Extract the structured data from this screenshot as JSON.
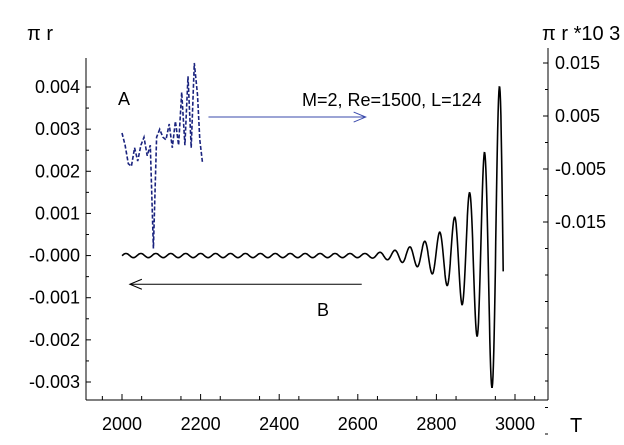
{
  "chart_data": {
    "type": "line",
    "left_axis": {
      "label": "π r",
      "ylim": [
        -0.0033,
        0.0043
      ],
      "ticks": [
        0.004,
        0.003,
        0.002,
        0.001,
        0.0,
        -0.001,
        -0.002,
        -0.003
      ],
      "tick_labels": [
        "0.004",
        "0.003",
        "0.002",
        "0.001",
        "-0.000",
        "-0.001",
        "-0.002",
        "-0.003"
      ]
    },
    "right_axis": {
      "label": "π r *10 3",
      "ylim": [
        -0.06,
        0.018
      ],
      "ticks": [
        0.015,
        0.005,
        -0.005,
        -0.015
      ],
      "tick_labels": [
        "0.015",
        "0.005",
        "-0.005",
        "-0.015"
      ]
    },
    "x_axis": {
      "label": "T",
      "xlim": [
        1900,
        3080
      ],
      "ticks": [
        2000,
        2200,
        2400,
        2600,
        2800,
        3000
      ],
      "tick_labels": [
        "2000",
        "2200",
        "2400",
        "2600",
        "2800",
        "3000"
      ]
    },
    "annotations": {
      "params": "M=2, Re=1500, L=124",
      "label_a": "A",
      "label_b": "B"
    },
    "series": [
      {
        "axis": "left",
        "style": "solid",
        "color": "#000000",
        "oscillation": {
          "x_start": 2000,
          "x_end": 2970,
          "period": 38,
          "x_peak": 2960,
          "peak_amplitude": 0.004,
          "trough_at_2937": -0.0028,
          "growth_rate": 0.013,
          "baseline_noise": 5e-05
        }
      },
      {
        "axis": "right",
        "style": "dashed",
        "color": "#1a237e",
        "x": [
          2000,
          2008,
          2016,
          2024,
          2032,
          2040,
          2048,
          2056,
          2064,
          2072,
          2080,
          2088,
          2096,
          2104,
          2112,
          2120,
          2128,
          2136,
          2144,
          2152,
          2160,
          2168,
          2176,
          2184,
          2192,
          2198,
          2205
        ],
        "values": [
          0.0018,
          -0.0005,
          -0.004,
          -0.0045,
          -0.001,
          -0.0035,
          -0.0005,
          0.001,
          -0.0025,
          -0.0005,
          -0.02,
          0.001,
          0.0025,
          0.001,
          0.0005,
          0.0035,
          -0.001,
          0.004,
          -0.0005,
          0.0095,
          -0.0005,
          0.0125,
          -0.001,
          0.015,
          0.009,
          0.0005,
          -0.004
        ]
      },
      {
        "axis": "none",
        "style": "arrow",
        "color": "#3949ab",
        "direction": "right",
        "x_from": 2220,
        "x_to": 2620,
        "y_right": 0.0048
      },
      {
        "axis": "none",
        "style": "arrow",
        "color": "#000000",
        "direction": "left",
        "x_from": 2610,
        "x_to": 2020,
        "y_left": -0.00068
      }
    ]
  }
}
